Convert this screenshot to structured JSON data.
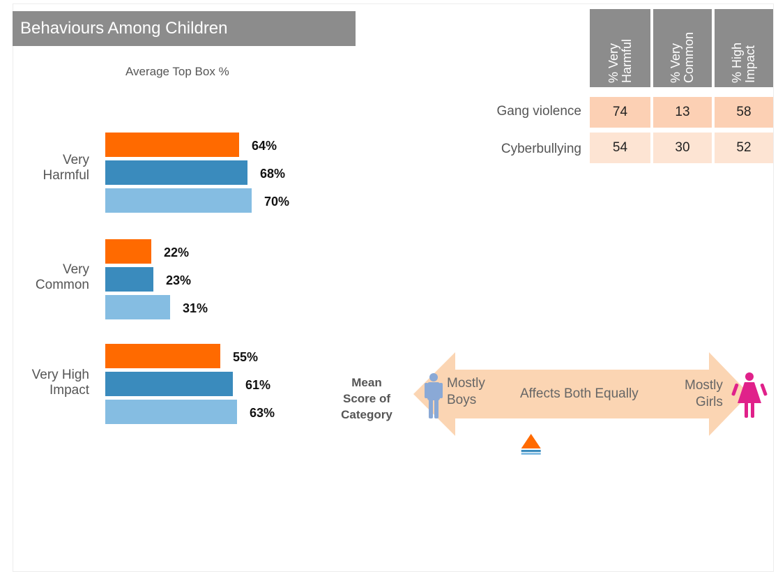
{
  "title": "Behaviours Among Children",
  "chart_data": {
    "type": "bar",
    "subtitle": "Average Top Box %",
    "categories": [
      "Very Harmful",
      "Very Common",
      "Very High Impact"
    ],
    "category_lines": [
      [
        "Very",
        "Harmful"
      ],
      [
        "Very",
        "Common"
      ],
      [
        "Very High",
        "Impact"
      ]
    ],
    "series": [
      {
        "values": [
          64,
          22,
          55
        ],
        "color": "#ff6a00",
        "labels": [
          "64%",
          "22%",
          "55%"
        ]
      },
      {
        "values": [
          68,
          23,
          61
        ],
        "color": "#3a8bbd",
        "labels": [
          "68%",
          "23%",
          "61%"
        ]
      },
      {
        "values": [
          70,
          31,
          63
        ],
        "color": "#85bde2",
        "labels": [
          "70%",
          "31%",
          "63%"
        ]
      }
    ],
    "xlim": [
      0,
      100
    ],
    "grid": false,
    "legend": "none"
  },
  "table": {
    "columns": [
      "% Very\nHarmful",
      "% Very\nCommon",
      "% High\nImpact"
    ],
    "rows": [
      {
        "label": "Gang violence",
        "values": [
          "74",
          "13",
          "58"
        ],
        "color": "#fcd0b4"
      },
      {
        "label": "Cyberbullying",
        "values": [
          "54",
          "30",
          "52"
        ],
        "color": "#fde4d3"
      }
    ]
  },
  "scale": {
    "mean_label_lines": [
      "Mean",
      "Score of",
      "Category"
    ],
    "left_lines": [
      "Mostly",
      "Boys"
    ],
    "center": "Affects Both Equally",
    "right_lines": [
      "Mostly",
      "Girls"
    ],
    "marker_position": 0.35,
    "arrow_color": "#fbd5b3",
    "boy_icon": "boy-icon",
    "girl_icon": "girl-icon",
    "boy_color": "#8aa9d6",
    "girl_color": "#e0218a"
  }
}
